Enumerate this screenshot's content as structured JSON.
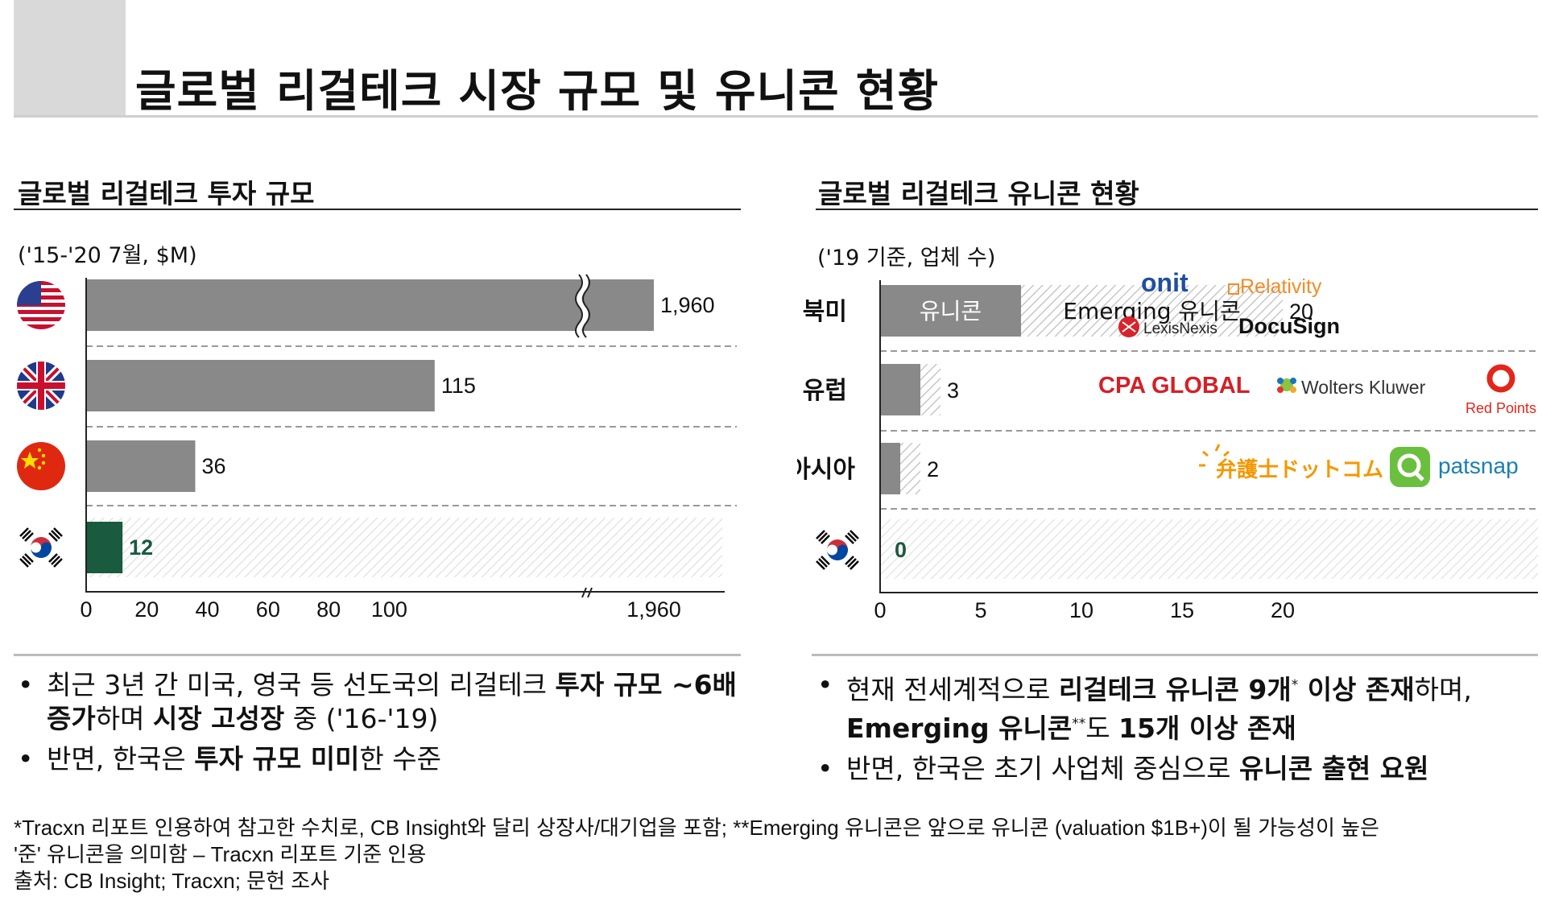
{
  "page_title": "글로벌 리걸테크 시장 규모 및 유니콘 현황",
  "left": {
    "section_title": "글로벌 리걸테크 투자 규모",
    "unit": "('15-'20 7월, $M)"
  },
  "right": {
    "section_title": "글로벌 리걸테크 유니콘 현황",
    "unit": "('19 기준, 업체 수)",
    "logos": {
      "row1": [
        "onit",
        "Relativity",
        "LexisNexis",
        "DocuSign"
      ],
      "row2": [
        "CPA GLOBAL",
        "Wolters Kluwer",
        "Red Points"
      ],
      "row3": [
        "弁護士ドットコム",
        "patsnap"
      ]
    }
  },
  "chart_data": [
    {
      "type": "bar",
      "orientation": "horizontal",
      "axis_break": true,
      "categories": [
        "미국",
        "영국",
        "중국",
        "한국"
      ],
      "values": [
        1960,
        115,
        36,
        12
      ],
      "value_labels": [
        "1,960",
        "115",
        "36",
        "12"
      ],
      "xticks": [
        "0",
        "20",
        "40",
        "60",
        "80",
        "100",
        "1,960"
      ],
      "xlim": [
        0,
        1960
      ],
      "colors": {
        "default": "#898989",
        "highlight": "#1a5a3f"
      },
      "grid": false
    },
    {
      "type": "bar",
      "orientation": "horizontal",
      "stacked": true,
      "categories": [
        "북미",
        "유럽",
        "아시아",
        "한국"
      ],
      "series": [
        {
          "name": "유니콘",
          "values": [
            7,
            2,
            1,
            0
          ]
        },
        {
          "name": "Emerging 유니콘",
          "values": [
            13,
            1,
            1,
            0
          ]
        }
      ],
      "totals": [
        "20",
        "3",
        "2",
        "0"
      ],
      "xticks": [
        "0",
        "5",
        "10",
        "15",
        "20"
      ],
      "xlim": [
        0,
        20
      ],
      "colors": {
        "unicorn": "#898989",
        "highlight": "#1a5a3f"
      },
      "grid": false
    }
  ],
  "bullets_left": [
    {
      "parts": [
        {
          "t": "최근 3년 간 미국, 영국 등 선도국의 리걸테크 ",
          "b": false
        },
        {
          "t": "투자 규모 ~6배 증가",
          "b": true
        },
        {
          "t": "하며 ",
          "b": false
        },
        {
          "t": "시장 고성장",
          "b": true
        },
        {
          "t": " 중 ('16-'19)",
          "b": false
        }
      ]
    },
    {
      "parts": [
        {
          "t": "반면, 한국은 ",
          "b": false
        },
        {
          "t": "투자 규모 미미",
          "b": true
        },
        {
          "t": "한 수준",
          "b": false
        }
      ]
    }
  ],
  "bullets_right": [
    {
      "parts": [
        {
          "t": "현재 전세계적으로 ",
          "b": false
        },
        {
          "t": "리걸테크 유니콘 9개",
          "b": true
        },
        {
          "t": "*",
          "b": false,
          "sup": true
        },
        {
          "t": " 이상 존재",
          "b": true
        },
        {
          "t": "하며, ",
          "b": false
        },
        {
          "t": "Emerging 유니콘",
          "b": true
        },
        {
          "t": "**",
          "b": false,
          "sup": true
        },
        {
          "t": "도 ",
          "b": false
        },
        {
          "t": "15개 이상 존재",
          "b": true
        }
      ]
    },
    {
      "parts": [
        {
          "t": "반면, 한국은 초기 사업체 중심으로 ",
          "b": false
        },
        {
          "t": "유니콘 출현 요원",
          "b": true
        }
      ]
    }
  ],
  "bullet_symbol": "•",
  "footnotes": [
    "*Tracxn 리포트 인용하여 참고한 수치로, CB Insight와 달리 상장사/대기업을 포함; **Emerging 유니콘은 앞으로 유니콘 (valuation $1B+)이 될 가능성이 높은",
    "'준' 유니콘을 의미함 – Tracxn 리포트 기준 인용",
    "출처:  CB Insight; Tracxn; 문헌 조사"
  ]
}
